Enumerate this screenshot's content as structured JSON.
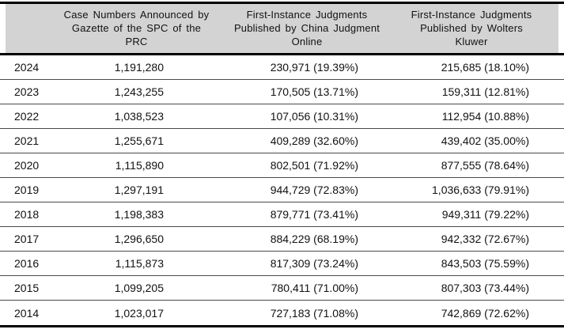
{
  "table": {
    "columns": [
      {
        "id": "year",
        "label": ""
      },
      {
        "id": "gazette",
        "label": "Case Numbers Announced by\nGazette of the SPC of the\nPRC"
      },
      {
        "id": "cjo",
        "label": "First-Instance Judgments\nPublished by China Judgment\nOnline"
      },
      {
        "id": "wk",
        "label": "First-Instance Judgments\nPublished by Wolters\nKluwer"
      }
    ],
    "rows": [
      {
        "year": "2024",
        "gazette": "1,191,280",
        "cjo": "230,971 (19.39%)",
        "wk": "215,685 (18.10%)"
      },
      {
        "year": "2023",
        "gazette": "1,243,255",
        "cjo": "170,505 (13.71%)",
        "wk": "159,311 (12.81%)"
      },
      {
        "year": "2022",
        "gazette": "1,038,523",
        "cjo": "107,056 (10.31%)",
        "wk": "112,954 (10.88%)"
      },
      {
        "year": "2021",
        "gazette": "1,255,671",
        "cjo": "409,289 (32.60%)",
        "wk": "439,402 (35.00%)"
      },
      {
        "year": "2020",
        "gazette": "1,115,890",
        "cjo": "802,501 (71.92%)",
        "wk": "877,555 (78.64%)"
      },
      {
        "year": "2019",
        "gazette": "1,297,191",
        "cjo": "944,729 (72.83%)",
        "wk": "1,036,633 (79.91%)"
      },
      {
        "year": "2018",
        "gazette": "1,198,383",
        "cjo": "879,771 (73.41%)",
        "wk": "949,311 (79.22%)"
      },
      {
        "year": "2017",
        "gazette": "1,296,650",
        "cjo": "884,229 (68.19%)",
        "wk": "942,332 (72.67%)"
      },
      {
        "year": "2016",
        "gazette": "1,115,873",
        "cjo": "817,309 (73.24%)",
        "wk": "843,503 (75.59%)"
      },
      {
        "year": "2015",
        "gazette": "1,099,205",
        "cjo": "780,411 (71.00%)",
        "wk": "807,303 (73.44%)"
      },
      {
        "year": "2014",
        "gazette": "1,023,017",
        "cjo": "727,183 (71.08%)",
        "wk": "742,869 (72.62%)"
      }
    ]
  },
  "colors": {
    "header_bg": "#d3d3d3",
    "rule": "#000000",
    "row_divider": "#4a4a4a",
    "text": "#111111"
  }
}
